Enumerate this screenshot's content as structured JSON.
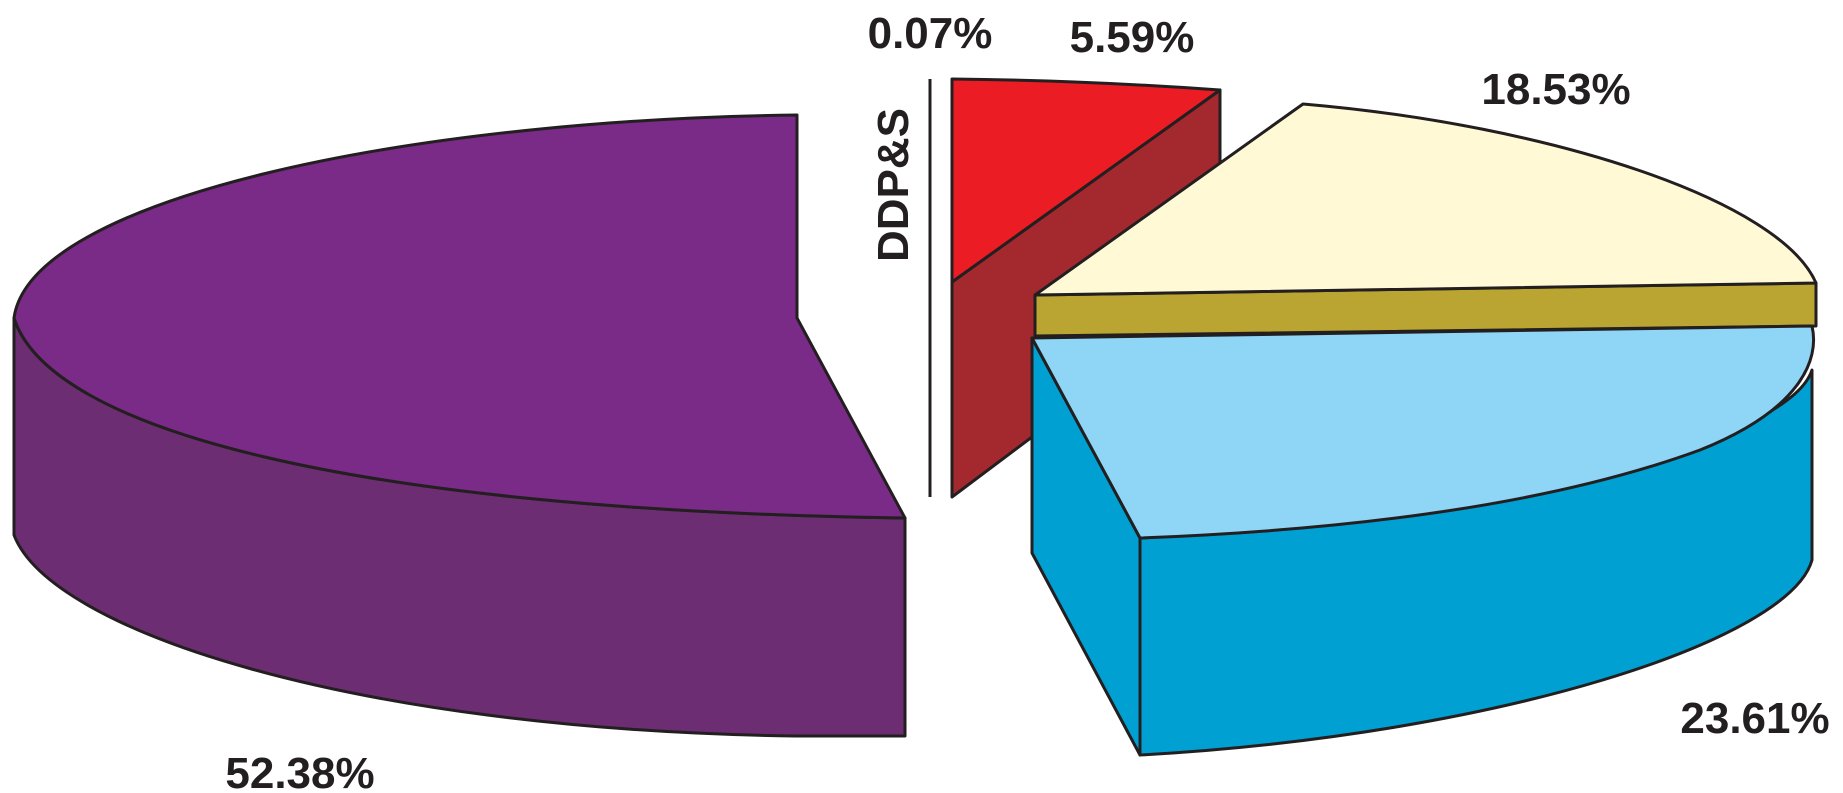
{
  "chart_data": {
    "type": "pie",
    "title": "",
    "slices": [
      {
        "label": "52.38%",
        "value": 52.38,
        "top_color": "#7a2a87",
        "side_color": "#6c2d72"
      },
      {
        "label": "23.61%",
        "value": 23.61,
        "top_color": "#8fd6f6",
        "side_color": "#00a0d2"
      },
      {
        "label": "0.07%",
        "value": 0.07,
        "annotation": "DDP&S",
        "top_color": "#ffffff",
        "side_color": "#ffffff"
      },
      {
        "label": "5.59%",
        "value": 5.59,
        "top_color": "#ec1c24",
        "side_color": "#a3292f"
      },
      {
        "label": "18.53%",
        "value": 18.53,
        "top_color": "#fffad5",
        "side_color": "#bba532"
      }
    ],
    "annotation_text": "DDP&S",
    "outline_color": "#231f20",
    "legend": "none"
  }
}
